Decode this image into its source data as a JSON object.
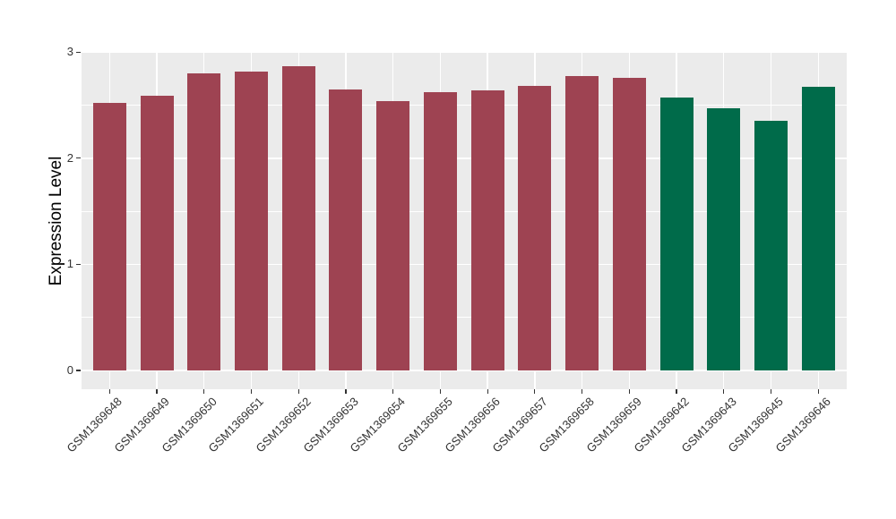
{
  "chart_data": {
    "type": "bar",
    "title": "",
    "xlabel": "",
    "ylabel": "Expression Level",
    "ylim": [
      0,
      3
    ],
    "ytick_labels": [
      "0",
      "1",
      "2",
      "3"
    ],
    "ytick_values": [
      0,
      1,
      2,
      3
    ],
    "ytick_minor_values": [
      0.5,
      1.5,
      2.5
    ],
    "gridlines": true,
    "legend_position": "none",
    "colors": {
      "panel_background": "#EBEBEB",
      "gridline": "#FFFFFF",
      "bar_red": "#9E4352",
      "bar_green": "#006B4A",
      "axis_text": "#333333",
      "axis_title": "#000000",
      "tick_mark": "#333333"
    },
    "bars": [
      {
        "label": "GSM1369648",
        "value": 2.52,
        "color_key": "bar_red"
      },
      {
        "label": "GSM1369649",
        "value": 2.59,
        "color_key": "bar_red"
      },
      {
        "label": "GSM1369650",
        "value": 2.8,
        "color_key": "bar_red"
      },
      {
        "label": "GSM1369651",
        "value": 2.82,
        "color_key": "bar_red"
      },
      {
        "label": "GSM1369652",
        "value": 2.87,
        "color_key": "bar_red"
      },
      {
        "label": "GSM1369653",
        "value": 2.65,
        "color_key": "bar_red"
      },
      {
        "label": "GSM1369654",
        "value": 2.54,
        "color_key": "bar_red"
      },
      {
        "label": "GSM1369655",
        "value": 2.62,
        "color_key": "bar_red"
      },
      {
        "label": "GSM1369656",
        "value": 2.64,
        "color_key": "bar_red"
      },
      {
        "label": "GSM1369657",
        "value": 2.68,
        "color_key": "bar_red"
      },
      {
        "label": "GSM1369658",
        "value": 2.77,
        "color_key": "bar_red"
      },
      {
        "label": "GSM1369659",
        "value": 2.76,
        "color_key": "bar_red"
      },
      {
        "label": "GSM1369642",
        "value": 2.57,
        "color_key": "bar_green"
      },
      {
        "label": "GSM1369643",
        "value": 2.47,
        "color_key": "bar_green"
      },
      {
        "label": "GSM1369645",
        "value": 2.35,
        "color_key": "bar_green"
      },
      {
        "label": "GSM1369646",
        "value": 2.67,
        "color_key": "bar_green"
      }
    ]
  }
}
